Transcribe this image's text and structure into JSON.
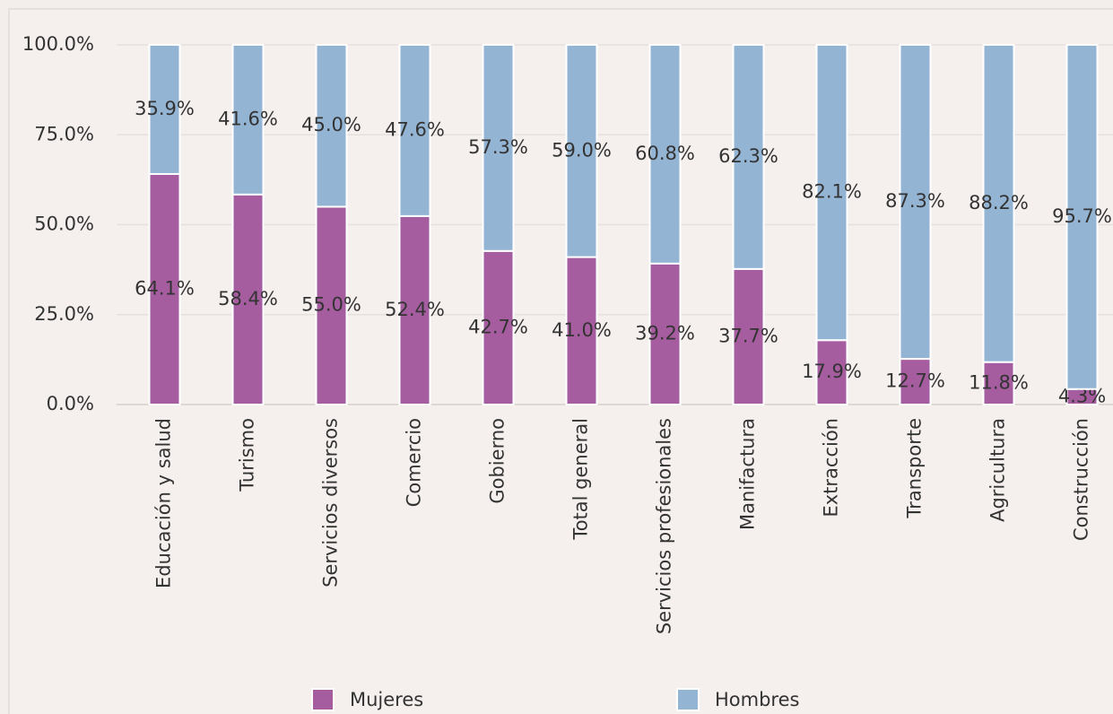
{
  "chart_data": {
    "type": "stacked_bar",
    "categories": [
      "Educación y salud",
      "Turismo",
      "Servicios diversos",
      "Comercio",
      "Gobierno",
      "Total general",
      "Servicios profesionales",
      "Manifactura",
      "Extracción",
      "Transporte",
      "Agricultura",
      "Construcción"
    ],
    "series": [
      {
        "name": "Mujeres",
        "color": "#a65da0",
        "values": [
          64.1,
          58.4,
          55.0,
          52.4,
          42.7,
          41.0,
          39.2,
          37.7,
          17.9,
          12.7,
          11.8,
          4.3
        ],
        "value_labels": [
          "64.1%",
          "58.4%",
          "55.0%",
          "52.4%",
          "42.7%",
          "41.0%",
          "39.2%",
          "37.7%",
          "17.9%",
          "12.7%",
          "11.8%",
          "4.3%"
        ]
      },
      {
        "name": "Hombres",
        "color": "#94b4d4",
        "values": [
          35.9,
          41.6,
          45.0,
          47.6,
          57.3,
          59.0,
          60.8,
          62.3,
          82.1,
          87.3,
          88.2,
          95.7
        ],
        "value_labels": [
          "35.9%",
          "41.6%",
          "45.0%",
          "47.6%",
          "57.3%",
          "59.0%",
          "60.8%",
          "62.3%",
          "82.1%",
          "87.3%",
          "88.2%",
          "95.7%"
        ]
      }
    ],
    "ylim": [
      0,
      100
    ],
    "yticks": [
      {
        "value": 0,
        "label": "0.0%"
      },
      {
        "value": 25,
        "label": "25.0%"
      },
      {
        "value": 50,
        "label": "50.0%"
      },
      {
        "value": 75,
        "label": "75.0%"
      },
      {
        "value": 100,
        "label": "100.0%"
      }
    ],
    "grid": true,
    "legend": "bottom"
  }
}
